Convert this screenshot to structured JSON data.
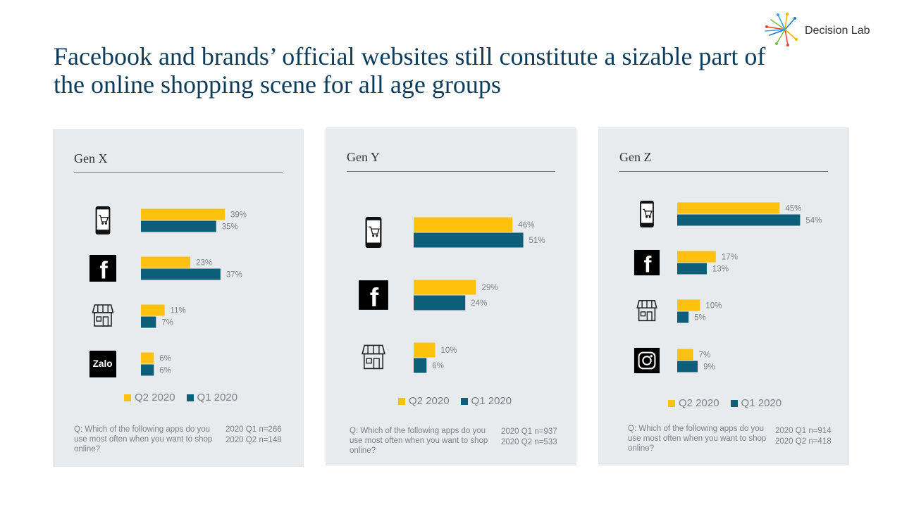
{
  "title": "Facebook and brands’ official websites still constitute a sizable part of the online shopping scene for all age groups",
  "logo": {
    "text": "Decision Lab"
  },
  "colors": {
    "q2": "#fdc10e",
    "q1": "#0c5e79",
    "panel_bg": "#e7ebed",
    "title": "#0e3d5c"
  },
  "legend": {
    "q2": "Q2 2020",
    "q1": "Q1 2020"
  },
  "chart_data": [
    {
      "type": "bar",
      "title": "Gen X",
      "categories": [
        "mobile-shopping-app",
        "facebook",
        "brand-official-website",
        "zalo"
      ],
      "series": [
        {
          "name": "Q2 2020",
          "values": [
            39,
            23,
            11,
            6
          ]
        },
        {
          "name": "Q1 2020",
          "values": [
            35,
            37,
            7,
            6
          ]
        }
      ],
      "value_labels": {
        "q2": [
          "39%",
          "23%",
          "11%",
          "6%"
        ],
        "q1": [
          "35%",
          "37%",
          "7%",
          "6%"
        ]
      },
      "footnote_q": "Q: Which of the following apps do you use most often when you want to shop online?",
      "footnote_n1": "2020  Q1  n=266",
      "footnote_n2": "2020  Q2  n=148"
    },
    {
      "type": "bar",
      "title": "Gen Y",
      "categories": [
        "mobile-shopping-app",
        "facebook",
        "brand-official-website"
      ],
      "series": [
        {
          "name": "Q2 2020",
          "values": [
            46,
            29,
            10
          ]
        },
        {
          "name": "Q1 2020",
          "values": [
            51,
            24,
            6
          ]
        }
      ],
      "value_labels": {
        "q2": [
          "46%",
          "29%",
          "10%"
        ],
        "q1": [
          "51%",
          "24%",
          "6%"
        ]
      },
      "footnote_q": "Q: Which of the following apps do you use most often when you want to shop online?",
      "footnote_n1": "2020  Q1  n=937",
      "footnote_n2": "2020  Q2  n=533"
    },
    {
      "type": "bar",
      "title": "Gen Z",
      "categories": [
        "mobile-shopping-app",
        "facebook",
        "brand-official-website",
        "instagram"
      ],
      "series": [
        {
          "name": "Q2 2020",
          "values": [
            45,
            17,
            10,
            7
          ]
        },
        {
          "name": "Q1 2020",
          "values": [
            54,
            13,
            5,
            9
          ]
        }
      ],
      "value_labels": {
        "q2": [
          "45%",
          "17%",
          "10%",
          "7%"
        ],
        "q1": [
          "54%",
          "13%",
          "5%",
          "9%"
        ]
      },
      "footnote_q": "Q: Which of the following apps do you use most often when you want to shop online?",
      "footnote_n1": "2020  Q1  n=914",
      "footnote_n2": "2020  Q2  n=418"
    }
  ],
  "icons": [
    "phone-cart-icon",
    "facebook-icon",
    "storefront-icon",
    "zalo-icon",
    "instagram-icon"
  ]
}
